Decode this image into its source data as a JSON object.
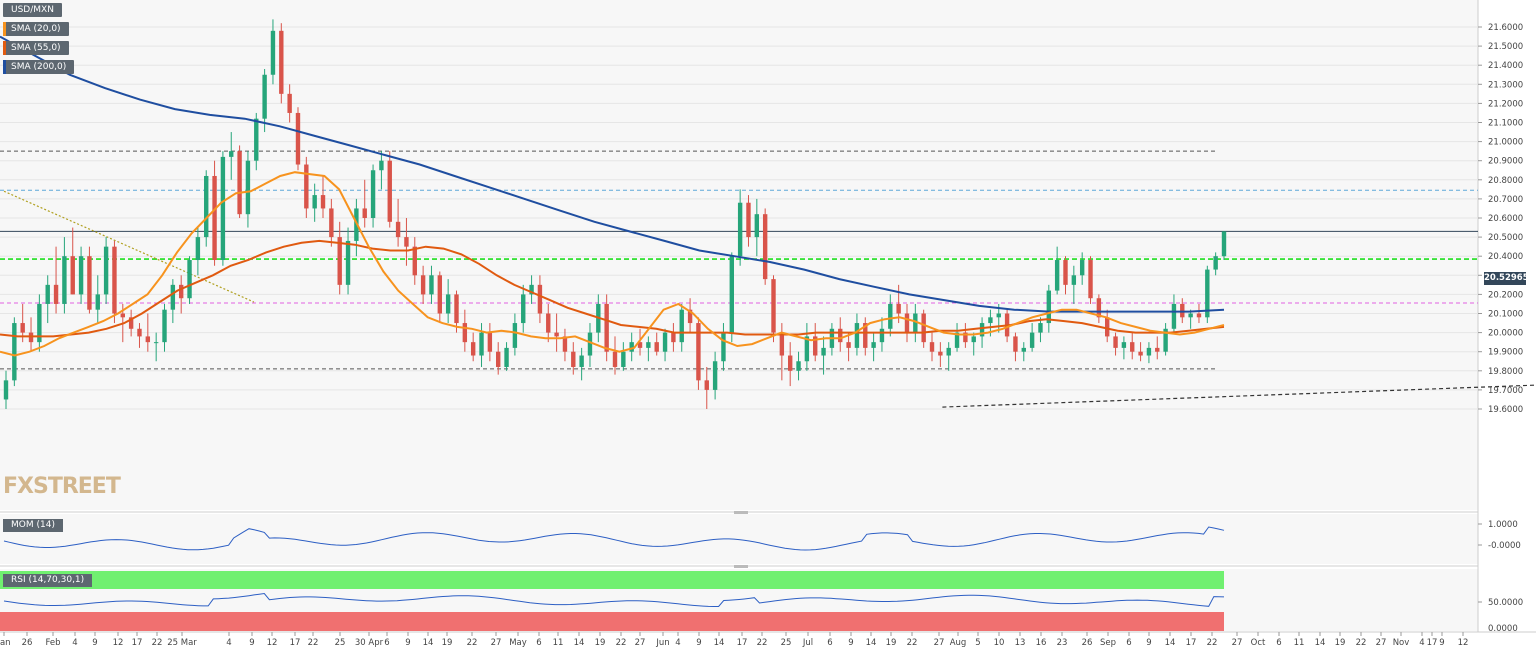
{
  "watermark": "FXSTREET",
  "legend": {
    "symbol": "USD/MXN",
    "sma20": {
      "label": "SMA (20,0)",
      "color": "#f7931e"
    },
    "sma55": {
      "label": "SMA (55,0)",
      "color": "#e05a10"
    },
    "sma200": {
      "label": "SMA (200,0)",
      "color": "#1f4ea0"
    }
  },
  "current_price_tag": "20.52965",
  "panes": {
    "mom_label": "MOM (14)",
    "rsi_label": "RSI (14,70,30,1)"
  },
  "chart_data": [
    {
      "type": "candlestick",
      "title": "USD/MXN",
      "y_axis_ticks": [
        "21.6000",
        "21.5000",
        "21.4000",
        "21.3000",
        "21.2000",
        "21.1000",
        "21.0000",
        "20.9000",
        "20.8000",
        "20.7000",
        "20.6000",
        "20.5000",
        "20.4000",
        "20.3000",
        "20.2000",
        "20.1000",
        "20.0000",
        "19.9000",
        "19.8000",
        "19.7000",
        "19.6000"
      ],
      "ylim": [
        19.55,
        21.67
      ],
      "x_axis_ticks": [
        "Jan",
        "26",
        "Feb",
        "4",
        "9",
        "12",
        "17",
        "22",
        "25 Mar",
        "4",
        "9",
        "12",
        "17",
        "22",
        "25",
        "30 Apr",
        "6",
        "9",
        "14",
        "19",
        "22",
        "27",
        "May",
        "6",
        "11",
        "14",
        "19",
        "22",
        "27",
        "Jun",
        "4",
        "9",
        "14",
        "17",
        "22",
        "25",
        "Jul",
        "6",
        "9",
        "14",
        "19",
        "22",
        "27",
        "Aug",
        "5",
        "10",
        "13",
        "16",
        "23",
        "26",
        "Sep",
        "6",
        "9",
        "14",
        "17",
        "22",
        "27",
        "Oct",
        "6",
        "11",
        "14",
        "19",
        "22",
        "27",
        "Nov",
        "4",
        "9",
        "12",
        "17"
      ],
      "current_price": 20.52965,
      "horizontal_levels": [
        {
          "value": 20.95,
          "style": "dashed",
          "color": "#555555"
        },
        {
          "value": 20.745,
          "style": "dashed",
          "color": "#5fa8d8"
        },
        {
          "value": 20.52965,
          "style": "solid",
          "color": "#33475a"
        },
        {
          "value": 20.385,
          "style": "dashed",
          "color": "#1ee01e"
        },
        {
          "value": 20.155,
          "style": "dashed",
          "color": "#e060e0"
        },
        {
          "value": 19.81,
          "style": "dashed",
          "color": "#555555"
        }
      ],
      "trendlines": [
        {
          "from": [
            0,
            20.74
          ],
          "to": [
            49,
            20.16
          ],
          "style": "dotted",
          "color": "#b0a020"
        },
        {
          "from": [
            184,
            19.61
          ],
          "to": [
            405,
            19.96
          ],
          "style": "dashed",
          "color": "#333333"
        }
      ],
      "ohlc": [
        [
          19.65,
          19.8,
          19.6,
          19.75
        ],
        [
          19.75,
          20.08,
          19.72,
          20.05
        ],
        [
          20.05,
          20.15,
          19.95,
          20
        ],
        [
          20,
          20.08,
          19.9,
          19.95
        ],
        [
          19.95,
          20.2,
          19.9,
          20.15
        ],
        [
          20.15,
          20.3,
          20.05,
          20.25
        ],
        [
          20.25,
          20.45,
          20.1,
          20.15
        ],
        [
          20.15,
          20.5,
          20.1,
          20.4
        ],
        [
          20.4,
          20.55,
          20.2,
          20.2
        ],
        [
          20.2,
          20.45,
          20.15,
          20.4
        ],
        [
          20.4,
          20.45,
          20.1,
          20.12
        ],
        [
          20.12,
          20.3,
          20.05,
          20.2
        ],
        [
          20.2,
          20.5,
          20.15,
          20.45
        ],
        [
          20.45,
          20.48,
          20.05,
          20.1
        ],
        [
          20.1,
          20.15,
          19.95,
          20.08
        ],
        [
          20.08,
          20.12,
          19.98,
          20.02
        ],
        [
          20.02,
          20.05,
          19.92,
          19.98
        ],
        [
          19.98,
          20.1,
          19.9,
          19.95
        ],
        [
          19.95,
          20.0,
          19.85,
          19.95
        ],
        [
          19.95,
          20.15,
          19.9,
          20.12
        ],
        [
          20.12,
          20.28,
          20.05,
          20.25
        ],
        [
          20.25,
          20.3,
          20.1,
          20.18
        ],
        [
          20.18,
          20.4,
          20.15,
          20.38
        ],
        [
          20.38,
          20.55,
          20.3,
          20.5
        ],
        [
          20.5,
          20.85,
          20.45,
          20.82
        ],
        [
          20.82,
          20.9,
          20.35,
          20.38
        ],
        [
          20.38,
          20.95,
          20.35,
          20.92
        ],
        [
          20.92,
          21.05,
          20.8,
          20.95
        ],
        [
          20.95,
          20.98,
          20.6,
          20.62
        ],
        [
          20.62,
          20.95,
          20.55,
          20.9
        ],
        [
          20.9,
          21.15,
          20.85,
          21.12
        ],
        [
          21.12,
          21.38,
          21.05,
          21.35
        ],
        [
          21.35,
          21.64,
          21.3,
          21.58
        ],
        [
          21.58,
          21.62,
          21.2,
          21.25
        ],
        [
          21.25,
          21.3,
          21.1,
          21.15
        ],
        [
          21.15,
          21.18,
          20.85,
          20.88
        ],
        [
          20.88,
          20.92,
          20.6,
          20.65
        ],
        [
          20.65,
          20.78,
          20.58,
          20.72
        ],
        [
          20.72,
          20.82,
          20.6,
          20.65
        ],
        [
          20.65,
          20.7,
          20.45,
          20.5
        ],
        [
          20.5,
          20.58,
          20.2,
          20.25
        ],
        [
          20.25,
          20.55,
          20.2,
          20.48
        ],
        [
          20.48,
          20.7,
          20.4,
          20.65
        ],
        [
          20.65,
          20.8,
          20.55,
          20.6
        ],
        [
          20.6,
          20.88,
          20.55,
          20.85
        ],
        [
          20.85,
          20.95,
          20.75,
          20.9
        ],
        [
          20.9,
          20.95,
          20.55,
          20.58
        ],
        [
          20.58,
          20.7,
          20.45,
          20.5
        ],
        [
          20.5,
          20.6,
          20.35,
          20.45
        ],
        [
          20.45,
          20.5,
          20.25,
          20.3
        ],
        [
          20.3,
          20.35,
          20.15,
          20.2
        ],
        [
          20.2,
          20.35,
          20.15,
          20.3
        ],
        [
          20.3,
          20.32,
          20.05,
          20.1
        ],
        [
          20.1,
          20.28,
          20.05,
          20.2
        ],
        [
          20.2,
          20.22,
          20.0,
          20.05
        ],
        [
          20.05,
          20.12,
          19.9,
          19.95
        ],
        [
          19.95,
          20.0,
          19.85,
          19.88
        ],
        [
          19.88,
          20.05,
          19.82,
          20.0
        ],
        [
          20.0,
          20.05,
          19.85,
          19.9
        ],
        [
          19.9,
          19.95,
          19.78,
          19.82
        ],
        [
          19.82,
          19.95,
          19.8,
          19.92
        ],
        [
          19.92,
          20.1,
          19.88,
          20.05
        ],
        [
          20.05,
          20.25,
          20.0,
          20.2
        ],
        [
          20.2,
          20.3,
          20.15,
          20.25
        ],
        [
          20.25,
          20.3,
          20.05,
          20.1
        ],
        [
          20.1,
          20.15,
          19.95,
          20.0
        ],
        [
          20.0,
          20.1,
          19.9,
          19.98
        ],
        [
          19.98,
          20.02,
          19.85,
          19.9
        ],
        [
          19.9,
          19.95,
          19.78,
          19.82
        ],
        [
          19.82,
          19.92,
          19.75,
          19.88
        ],
        [
          19.88,
          20.05,
          19.82,
          20.0
        ],
        [
          20.0,
          20.2,
          19.95,
          20.15
        ],
        [
          20.15,
          20.2,
          19.85,
          19.9
        ],
        [
          19.9,
          19.98,
          19.78,
          19.82
        ],
        [
          19.82,
          19.95,
          19.8,
          19.9
        ],
        [
          19.9,
          20.0,
          19.85,
          19.95
        ],
        [
          19.95,
          20.02,
          19.88,
          19.92
        ],
        [
          19.92,
          19.98,
          19.85,
          19.95
        ],
        [
          19.95,
          20.0,
          19.88,
          19.9
        ],
        [
          19.9,
          20.02,
          19.85,
          20.0
        ],
        [
          20.0,
          20.05,
          19.9,
          19.95
        ],
        [
          19.95,
          20.15,
          19.9,
          20.12
        ],
        [
          20.12,
          20.18,
          20.0,
          20.05
        ],
        [
          20.05,
          20.08,
          19.7,
          19.75
        ],
        [
          19.75,
          19.82,
          19.6,
          19.7
        ],
        [
          19.7,
          19.9,
          19.65,
          19.85
        ],
        [
          19.85,
          20.05,
          19.8,
          20.0
        ],
        [
          20.0,
          20.42,
          19.95,
          20.4
        ],
        [
          20.4,
          20.75,
          20.35,
          20.68
        ],
        [
          20.68,
          20.72,
          20.45,
          20.5
        ],
        [
          20.5,
          20.7,
          20.4,
          20.62
        ],
        [
          20.62,
          20.65,
          20.25,
          20.28
        ],
        [
          20.28,
          20.3,
          19.95,
          20.0
        ],
        [
          20.0,
          20.05,
          19.75,
          19.88
        ],
        [
          19.88,
          19.95,
          19.72,
          19.8
        ],
        [
          19.8,
          19.9,
          19.75,
          19.85
        ],
        [
          19.85,
          20.05,
          19.8,
          19.98
        ],
        [
          19.98,
          20.05,
          19.85,
          19.88
        ],
        [
          19.88,
          19.98,
          19.78,
          19.92
        ],
        [
          19.92,
          20.05,
          19.88,
          20.02
        ],
        [
          20.02,
          20.08,
          19.9,
          19.95
        ],
        [
          19.95,
          20.0,
          19.85,
          19.92
        ],
        [
          19.92,
          20.1,
          19.88,
          20.05
        ],
        [
          20.05,
          20.08,
          19.88,
          19.92
        ],
        [
          19.92,
          20.0,
          19.85,
          19.95
        ],
        [
          19.95,
          20.08,
          19.9,
          20.02
        ],
        [
          20.02,
          20.2,
          19.98,
          20.15
        ],
        [
          20.15,
          20.25,
          20.05,
          20.1
        ],
        [
          20.1,
          20.15,
          19.95,
          20.0
        ],
        [
          20.0,
          20.15,
          19.95,
          20.1
        ],
        [
          20.1,
          20.12,
          19.92,
          19.95
        ],
        [
          19.95,
          20.0,
          19.85,
          19.9
        ],
        [
          19.9,
          19.95,
          19.82,
          19.88
        ],
        [
          19.88,
          19.95,
          19.8,
          19.92
        ],
        [
          19.92,
          20.05,
          19.9,
          20.0
        ],
        [
          20.0,
          20.05,
          19.92,
          19.95
        ],
        [
          19.95,
          20.0,
          19.88,
          19.98
        ],
        [
          19.98,
          20.08,
          19.92,
          20.05
        ],
        [
          20.05,
          20.12,
          19.98,
          20.08
        ],
        [
          20.08,
          20.15,
          20.0,
          20.1
        ],
        [
          20.1,
          20.12,
          19.95,
          19.98
        ],
        [
          19.98,
          20.0,
          19.85,
          19.9
        ],
        [
          19.9,
          19.95,
          19.85,
          19.92
        ],
        [
          19.92,
          20.05,
          19.9,
          20.0
        ],
        [
          20.0,
          20.08,
          19.95,
          20.05
        ],
        [
          20.05,
          20.25,
          20.0,
          20.22
        ],
        [
          20.22,
          20.45,
          20.2,
          20.38
        ],
        [
          20.38,
          20.4,
          20.2,
          20.25
        ],
        [
          20.25,
          20.35,
          20.15,
          20.3
        ],
        [
          20.3,
          20.42,
          20.25,
          20.38
        ],
        [
          20.38,
          20.4,
          20.15,
          20.18
        ],
        [
          20.18,
          20.2,
          20.05,
          20.08
        ],
        [
          20.08,
          20.12,
          19.95,
          19.98
        ],
        [
          19.98,
          20.0,
          19.88,
          19.92
        ],
        [
          19.92,
          19.98,
          19.86,
          19.95
        ],
        [
          19.95,
          20.0,
          19.86,
          19.9
        ],
        [
          19.9,
          19.95,
          19.85,
          19.88
        ],
        [
          19.88,
          19.95,
          19.84,
          19.92
        ],
        [
          19.92,
          19.98,
          19.86,
          19.9
        ],
        [
          19.9,
          20.05,
          19.88,
          20.02
        ],
        [
          20.02,
          20.2,
          20.0,
          20.15
        ],
        [
          20.15,
          20.18,
          20.05,
          20.08
        ],
        [
          20.08,
          20.12,
          20.02,
          20.1
        ],
        [
          20.1,
          20.15,
          20.05,
          20.08
        ],
        [
          20.08,
          20.35,
          20.05,
          20.33
        ],
        [
          20.33,
          20.42,
          20.3,
          20.4
        ],
        [
          20.4,
          20.53,
          20.38,
          20.53
        ]
      ],
      "sma20": [
        19.9,
        19.88,
        19.9,
        19.93,
        19.97,
        20.0,
        20.03,
        20.06,
        20.1,
        20.15,
        20.2,
        20.3,
        20.42,
        20.52,
        20.6,
        20.68,
        20.73,
        20.74,
        20.78,
        20.82,
        20.84,
        20.83,
        20.82,
        20.75,
        20.6,
        20.45,
        20.32,
        20.22,
        20.15,
        20.08,
        20.05,
        20.03,
        20.02,
        20.0,
        20.01,
        20.0,
        19.98,
        19.97,
        19.97,
        19.98,
        19.95,
        19.92,
        19.9,
        19.92,
        20.02,
        20.12,
        20.15,
        20.1,
        20.02,
        19.96,
        19.93,
        19.94,
        19.97,
        20.0,
        19.98,
        19.96,
        19.97,
        19.97,
        20.0,
        20.05,
        20.07,
        20.08,
        20.06,
        20.03,
        20.0,
        19.99,
        19.99,
        20.0,
        20.02,
        20.05,
        20.08,
        20.1,
        20.12,
        20.12,
        20.1,
        20.08,
        20.05,
        20.03,
        20.01,
        20.0,
        19.99,
        20.0,
        20.02,
        20.04
      ],
      "sma55": [
        19.99,
        19.98,
        19.98,
        19.98,
        19.99,
        20.0,
        20.02,
        20.05,
        20.1,
        20.16,
        20.22,
        20.26,
        20.3,
        20.35,
        20.38,
        20.42,
        20.45,
        20.47,
        20.48,
        20.47,
        20.46,
        20.44,
        20.43,
        20.43,
        20.45,
        20.44,
        20.41,
        20.36,
        20.3,
        20.25,
        20.21,
        20.17,
        20.13,
        20.1,
        20.07,
        20.04,
        20.03,
        20.02,
        20.0,
        20.0,
        20.0,
        20.0,
        19.99,
        19.99,
        19.99,
        19.99,
        20.0,
        20.0,
        20.0,
        20.0,
        20.0,
        20.0,
        20.0,
        20.01,
        20.01,
        20.02,
        20.03,
        20.04,
        20.06,
        20.07,
        20.06,
        20.05,
        20.03,
        20.01,
        20.0,
        20.0,
        20.0,
        20.01,
        20.02,
        20.03
      ],
      "sma200": [
        21.55,
        21.45,
        21.35,
        21.28,
        21.22,
        21.17,
        21.14,
        21.12,
        21.08,
        21.03,
        20.98,
        20.93,
        20.88,
        20.82,
        20.76,
        20.7,
        20.64,
        20.58,
        20.53,
        20.48,
        20.43,
        20.4,
        20.37,
        20.33,
        20.28,
        20.24,
        20.2,
        20.17,
        20.14,
        20.12,
        20.11,
        20.11,
        20.11,
        20.11,
        20.11,
        20.12
      ],
      "mom_axis": [
        "1.0000",
        "-0.0000"
      ],
      "rsi_axis": [
        "50.0000",
        "0.0000"
      ]
    }
  ]
}
